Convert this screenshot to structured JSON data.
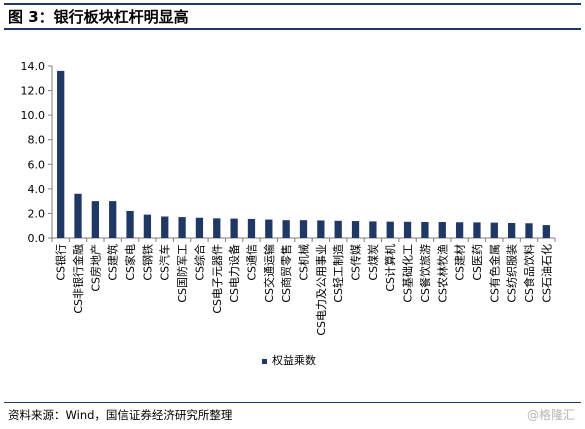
{
  "figure": {
    "title": "图 3：银行板块杠杆明显高",
    "source": "资料来源：Wind，国信证券经济研究所整理",
    "watermark": "@格隆汇"
  },
  "colors": {
    "bar": "#1f3864",
    "rule": "#1f3864",
    "axis": "#7f7f7f"
  },
  "chart_data": {
    "type": "bar",
    "title": "",
    "xlabel": "",
    "ylabel": "",
    "ylim": [
      0,
      14
    ],
    "yticks": [
      "0.0",
      "2.0",
      "4.0",
      "6.0",
      "8.0",
      "10.0",
      "12.0",
      "14.0"
    ],
    "grid": false,
    "legend_position": "bottom-center",
    "categories": [
      "CS银行",
      "CS非银行金融",
      "CS房地产",
      "CS建筑",
      "CS家电",
      "CS钢铁",
      "CS汽车",
      "CS国防军工",
      "CS综合",
      "CS电子元器件",
      "CS电力设备",
      "CS通信",
      "CS交通运输",
      "CS商贸零售",
      "CS机械",
      "CS电力及公用事业",
      "CS轻工制造",
      "CS传媒",
      "CS煤炭",
      "CS计算机",
      "CS基础化工",
      "CS餐饮旅游",
      "CS农林牧渔",
      "CS建材",
      "CS医药",
      "CS有色金属",
      "CS纺织服装",
      "CS食品饮料",
      "CS石油石化"
    ],
    "series": [
      {
        "name": "权益乘数",
        "values": [
          13.6,
          3.6,
          3.0,
          3.0,
          2.2,
          1.9,
          1.75,
          1.7,
          1.65,
          1.6,
          1.58,
          1.55,
          1.5,
          1.45,
          1.45,
          1.43,
          1.4,
          1.38,
          1.35,
          1.33,
          1.32,
          1.3,
          1.3,
          1.28,
          1.27,
          1.25,
          1.22,
          1.2,
          1.05
        ]
      }
    ]
  }
}
